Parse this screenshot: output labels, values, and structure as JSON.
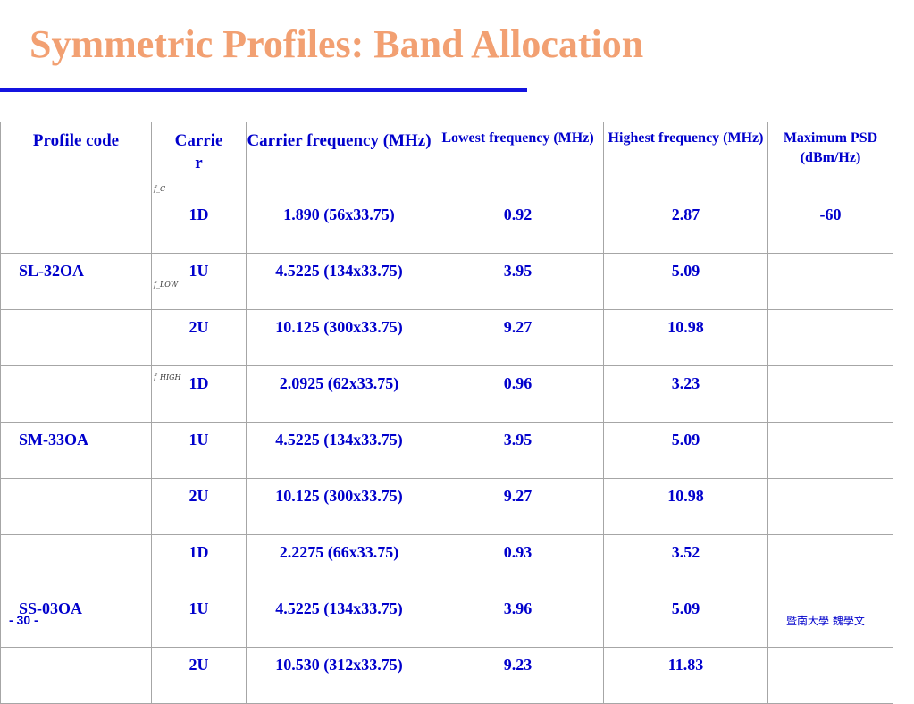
{
  "slide": {
    "title": "Symmetric Profiles: Band Allocation",
    "page_number": "- 30 -",
    "footer": "暨南大學 魏學文"
  },
  "table": {
    "headers": {
      "profile_code": "Profile code",
      "carrier": "Carrie\nr",
      "carrier_frequency": "Carrier frequency (MHz)",
      "lowest_frequency": "Lowest frequency (MHz)",
      "highest_frequency": "Highest frequency (MHz)",
      "max_psd": "Maximum PSD (dBm/Hz)"
    },
    "symbols": {
      "fc": "f_C",
      "flow": "f_LOW",
      "fhigh": "f_HIGH"
    },
    "rows": [
      {
        "code": "",
        "carrier": "1D",
        "freq": "1.890 (56x33.75)",
        "low": "0.92",
        "high": "2.87",
        "psd": "-60"
      },
      {
        "code": "SL-32OA",
        "carrier": "1U",
        "freq": "4.5225 (134x33.75)",
        "low": "3.95",
        "high": "5.09",
        "psd": ""
      },
      {
        "code": "",
        "carrier": "2U",
        "freq": "10.125 (300x33.75)",
        "low": "9.27",
        "high": "10.98",
        "psd": ""
      },
      {
        "code": "",
        "carrier": "1D",
        "freq": "2.0925 (62x33.75)",
        "low": "0.96",
        "high": "3.23",
        "psd": ""
      },
      {
        "code": "SM-33OA",
        "carrier": "1U",
        "freq": "4.5225 (134x33.75)",
        "low": "3.95",
        "high": "5.09",
        "psd": ""
      },
      {
        "code": "",
        "carrier": "2U",
        "freq": "10.125 (300x33.75)",
        "low": "9.27",
        "high": "10.98",
        "psd": ""
      },
      {
        "code": "",
        "carrier": "1D",
        "freq": "2.2275 (66x33.75)",
        "low": "0.93",
        "high": "3.52",
        "psd": ""
      },
      {
        "code": "SS-03OA",
        "carrier": "1U",
        "freq": "4.5225 (134x33.75)",
        "low": "3.96",
        "high": "5.09",
        "psd": ""
      },
      {
        "code": "",
        "carrier": "2U",
        "freq": "10.530 (312x33.75)",
        "low": "9.23",
        "high": "11.83",
        "psd": ""
      }
    ]
  }
}
